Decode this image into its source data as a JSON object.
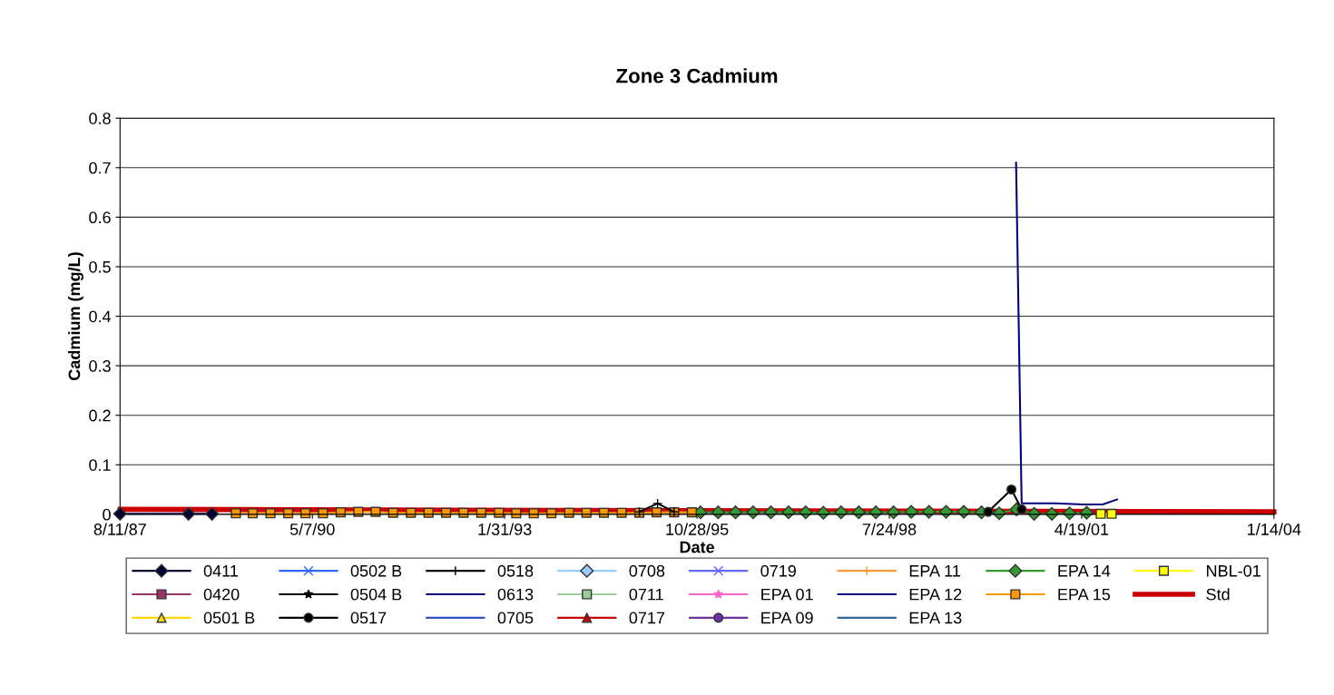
{
  "chart_data": {
    "type": "line",
    "title": "Zone 3 Cadmium",
    "xlabel": "Date",
    "ylabel": "Cadmium (mg/L)",
    "xlim": [
      "1987-08-11",
      "2004-01-14"
    ],
    "xticks": [
      {
        "value": "1987-08-11",
        "label": "8/11/87"
      },
      {
        "value": "1990-05-07",
        "label": "5/7/90"
      },
      {
        "value": "1993-01-31",
        "label": "1/31/93"
      },
      {
        "value": "1995-10-28",
        "label": "10/28/95"
      },
      {
        "value": "1998-07-24",
        "label": "7/24/98"
      },
      {
        "value": "2001-04-19",
        "label": "4/19/01"
      },
      {
        "value": "2004-01-14",
        "label": "1/14/04"
      }
    ],
    "ylim": [
      0,
      0.8
    ],
    "yticks": [
      0,
      0.1,
      0.2,
      0.3,
      0.4,
      0.5,
      0.6,
      0.7,
      0.8
    ],
    "grid": "y",
    "legend": "bottom",
    "series": [
      {
        "name": "0411",
        "color": "#000033",
        "marker": "diamond",
        "x": [
          "1987-08-11",
          "1988-08-01",
          "1988-12-01"
        ],
        "values": [
          0.001,
          0.001,
          0.001
        ]
      },
      {
        "name": "0420",
        "color": "#993366",
        "marker": "square"
      },
      {
        "name": "0501 B",
        "color": "#ffd700",
        "marker": "triangle"
      },
      {
        "name": "0502 B",
        "color": "#3366ff",
        "marker": "cross"
      },
      {
        "name": "0504 B",
        "color": "#000000",
        "marker": "star"
      },
      {
        "name": "0517",
        "color": "#000000",
        "marker": "circle",
        "x": [
          "1999-12-20",
          "2000-04-19",
          "2000-06-11"
        ],
        "values": [
          0.005,
          0.05,
          0.01
        ]
      },
      {
        "name": "0518",
        "color": "#000000",
        "marker": "plus",
        "x": [
          "1995-01-01",
          "1995-04-06",
          "1995-07-01"
        ],
        "values": [
          0.005,
          0.022,
          0.005
        ]
      },
      {
        "name": "0613",
        "color": "#000080",
        "marker": "none",
        "x": [
          "2000-05-13",
          "2000-06-11",
          "2000-12-03",
          "2001-04-24",
          "2001-08-06",
          "2001-10-21"
        ],
        "values": [
          0.71,
          0.022,
          0.022,
          0.02,
          0.02,
          0.03
        ]
      },
      {
        "name": "0705",
        "color": "#3355cc",
        "marker": "none"
      },
      {
        "name": "0708",
        "color": "#99ccff",
        "marker": "diamond"
      },
      {
        "name": "0711",
        "color": "#99cc99",
        "marker": "square"
      },
      {
        "name": "0717",
        "color": "#cc0000",
        "marker": "triangle"
      },
      {
        "name": "0719",
        "color": "#6666ff",
        "marker": "cross"
      },
      {
        "name": "EPA 01",
        "color": "#ff66cc",
        "marker": "star"
      },
      {
        "name": "EPA 09",
        "color": "#7030a0",
        "marker": "circle"
      },
      {
        "name": "EPA 11",
        "color": "#ff9933",
        "marker": "plus"
      },
      {
        "name": "EPA 12",
        "color": "#000080",
        "marker": "none"
      },
      {
        "name": "EPA 13",
        "color": "#336699",
        "marker": "none"
      },
      {
        "name": "EPA 14",
        "color": "#339933",
        "marker": "diamond",
        "x": [
          "1995-11-15",
          "1996-02-15",
          "1996-05-15",
          "1996-08-15",
          "1996-11-15",
          "1997-02-15",
          "1997-05-15",
          "1997-08-15",
          "1997-11-15",
          "1998-02-15",
          "1998-05-15",
          "1998-08-15",
          "1998-11-15",
          "1999-02-15",
          "1999-05-15",
          "1999-08-15",
          "1999-11-15",
          "2000-02-15",
          "2000-05-15",
          "2000-08-15",
          "2000-11-15",
          "2001-02-15",
          "2001-05-15"
        ],
        "values": [
          0.004,
          0.004,
          0.004,
          0.004,
          0.004,
          0.004,
          0.004,
          0.003,
          0.004,
          0.004,
          0.004,
          0.004,
          0.005,
          0.005,
          0.005,
          0.005,
          0.004,
          0.002,
          0.01,
          0.001,
          0.001,
          0.002,
          0.003
        ]
      },
      {
        "name": "EPA 15",
        "color": "#ff9900",
        "marker": "square",
        "x": [
          "1989-04-04",
          "1989-07-01",
          "1989-10-01",
          "1990-01-01",
          "1990-04-01",
          "1990-07-01",
          "1990-10-01",
          "1991-01-01",
          "1991-04-01",
          "1991-07-01",
          "1991-10-01",
          "1992-01-01",
          "1992-04-01",
          "1992-07-01",
          "1992-10-01",
          "1993-01-01",
          "1993-04-01",
          "1993-07-01",
          "1993-10-01",
          "1994-01-01",
          "1994-04-01",
          "1994-07-01",
          "1994-10-01",
          "1995-01-01",
          "1995-04-01",
          "1995-07-01",
          "1995-10-01"
        ],
        "values": [
          0.002,
          0.002,
          0.002,
          0.002,
          0.002,
          0.002,
          0.004,
          0.005,
          0.005,
          0.003,
          0.003,
          0.003,
          0.003,
          0.003,
          0.003,
          0.003,
          0.002,
          0.002,
          0.002,
          0.003,
          0.003,
          0.003,
          0.003,
          0.003,
          0.004,
          0.004,
          0.004
        ]
      },
      {
        "name": "NBL-01",
        "color": "#ffff00",
        "marker": "square",
        "x": [
          "2001-07-27",
          "2001-09-22"
        ],
        "values": [
          0.001,
          0.001
        ]
      },
      {
        "name": "Std",
        "color": "#cc0000",
        "marker": "none",
        "x": [
          "1987-08-11",
          "2004-01-14"
        ],
        "values": [
          0.01,
          0.005
        ]
      }
    ]
  }
}
